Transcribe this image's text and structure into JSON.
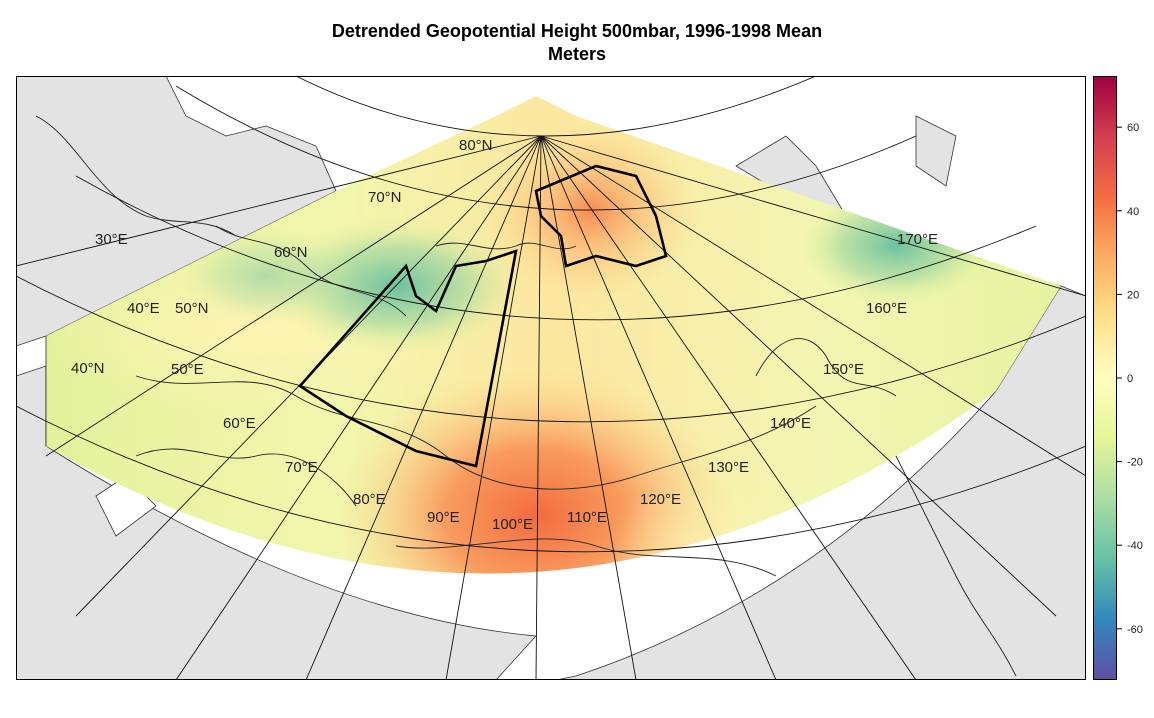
{
  "title": "Detrended Geopotential Height 500mbar, 1996-1998 Mean",
  "subtitle": "Meters",
  "latitude_labels": [
    "80°N",
    "70°N",
    "60°N",
    "50°N",
    "40°N"
  ],
  "longitude_labels": [
    "30°E",
    "40°E",
    "50°E",
    "60°E",
    "70°E",
    "80°E",
    "90°E",
    "100°E",
    "110°E",
    "120°E",
    "130°E",
    "140°E",
    "150°E",
    "160°E",
    "170°E"
  ],
  "colorbar": {
    "ticks": [
      60,
      40,
      20,
      0,
      -20,
      -40,
      -60
    ],
    "tick_labels": [
      "60",
      "40",
      "20",
      "0",
      "-20",
      "-40",
      "-60"
    ],
    "range": [
      -72,
      72
    ],
    "colors": [
      "#5e4fa2",
      "#3288bd",
      "#66c2a5",
      "#abdda4",
      "#e6f598",
      "#ffffbf",
      "#fee08b",
      "#fdae61",
      "#f46d43",
      "#d53e4f",
      "#9e0142"
    ]
  },
  "field_colors": {
    "warm_center": "#f26b3f",
    "arctic_warm": "#fb9a5a",
    "cool_west": "#73c59f",
    "cool_east": "#6fbfa0",
    "neutral": "#fbf6b8"
  },
  "land_color": "#e3e3e3"
}
